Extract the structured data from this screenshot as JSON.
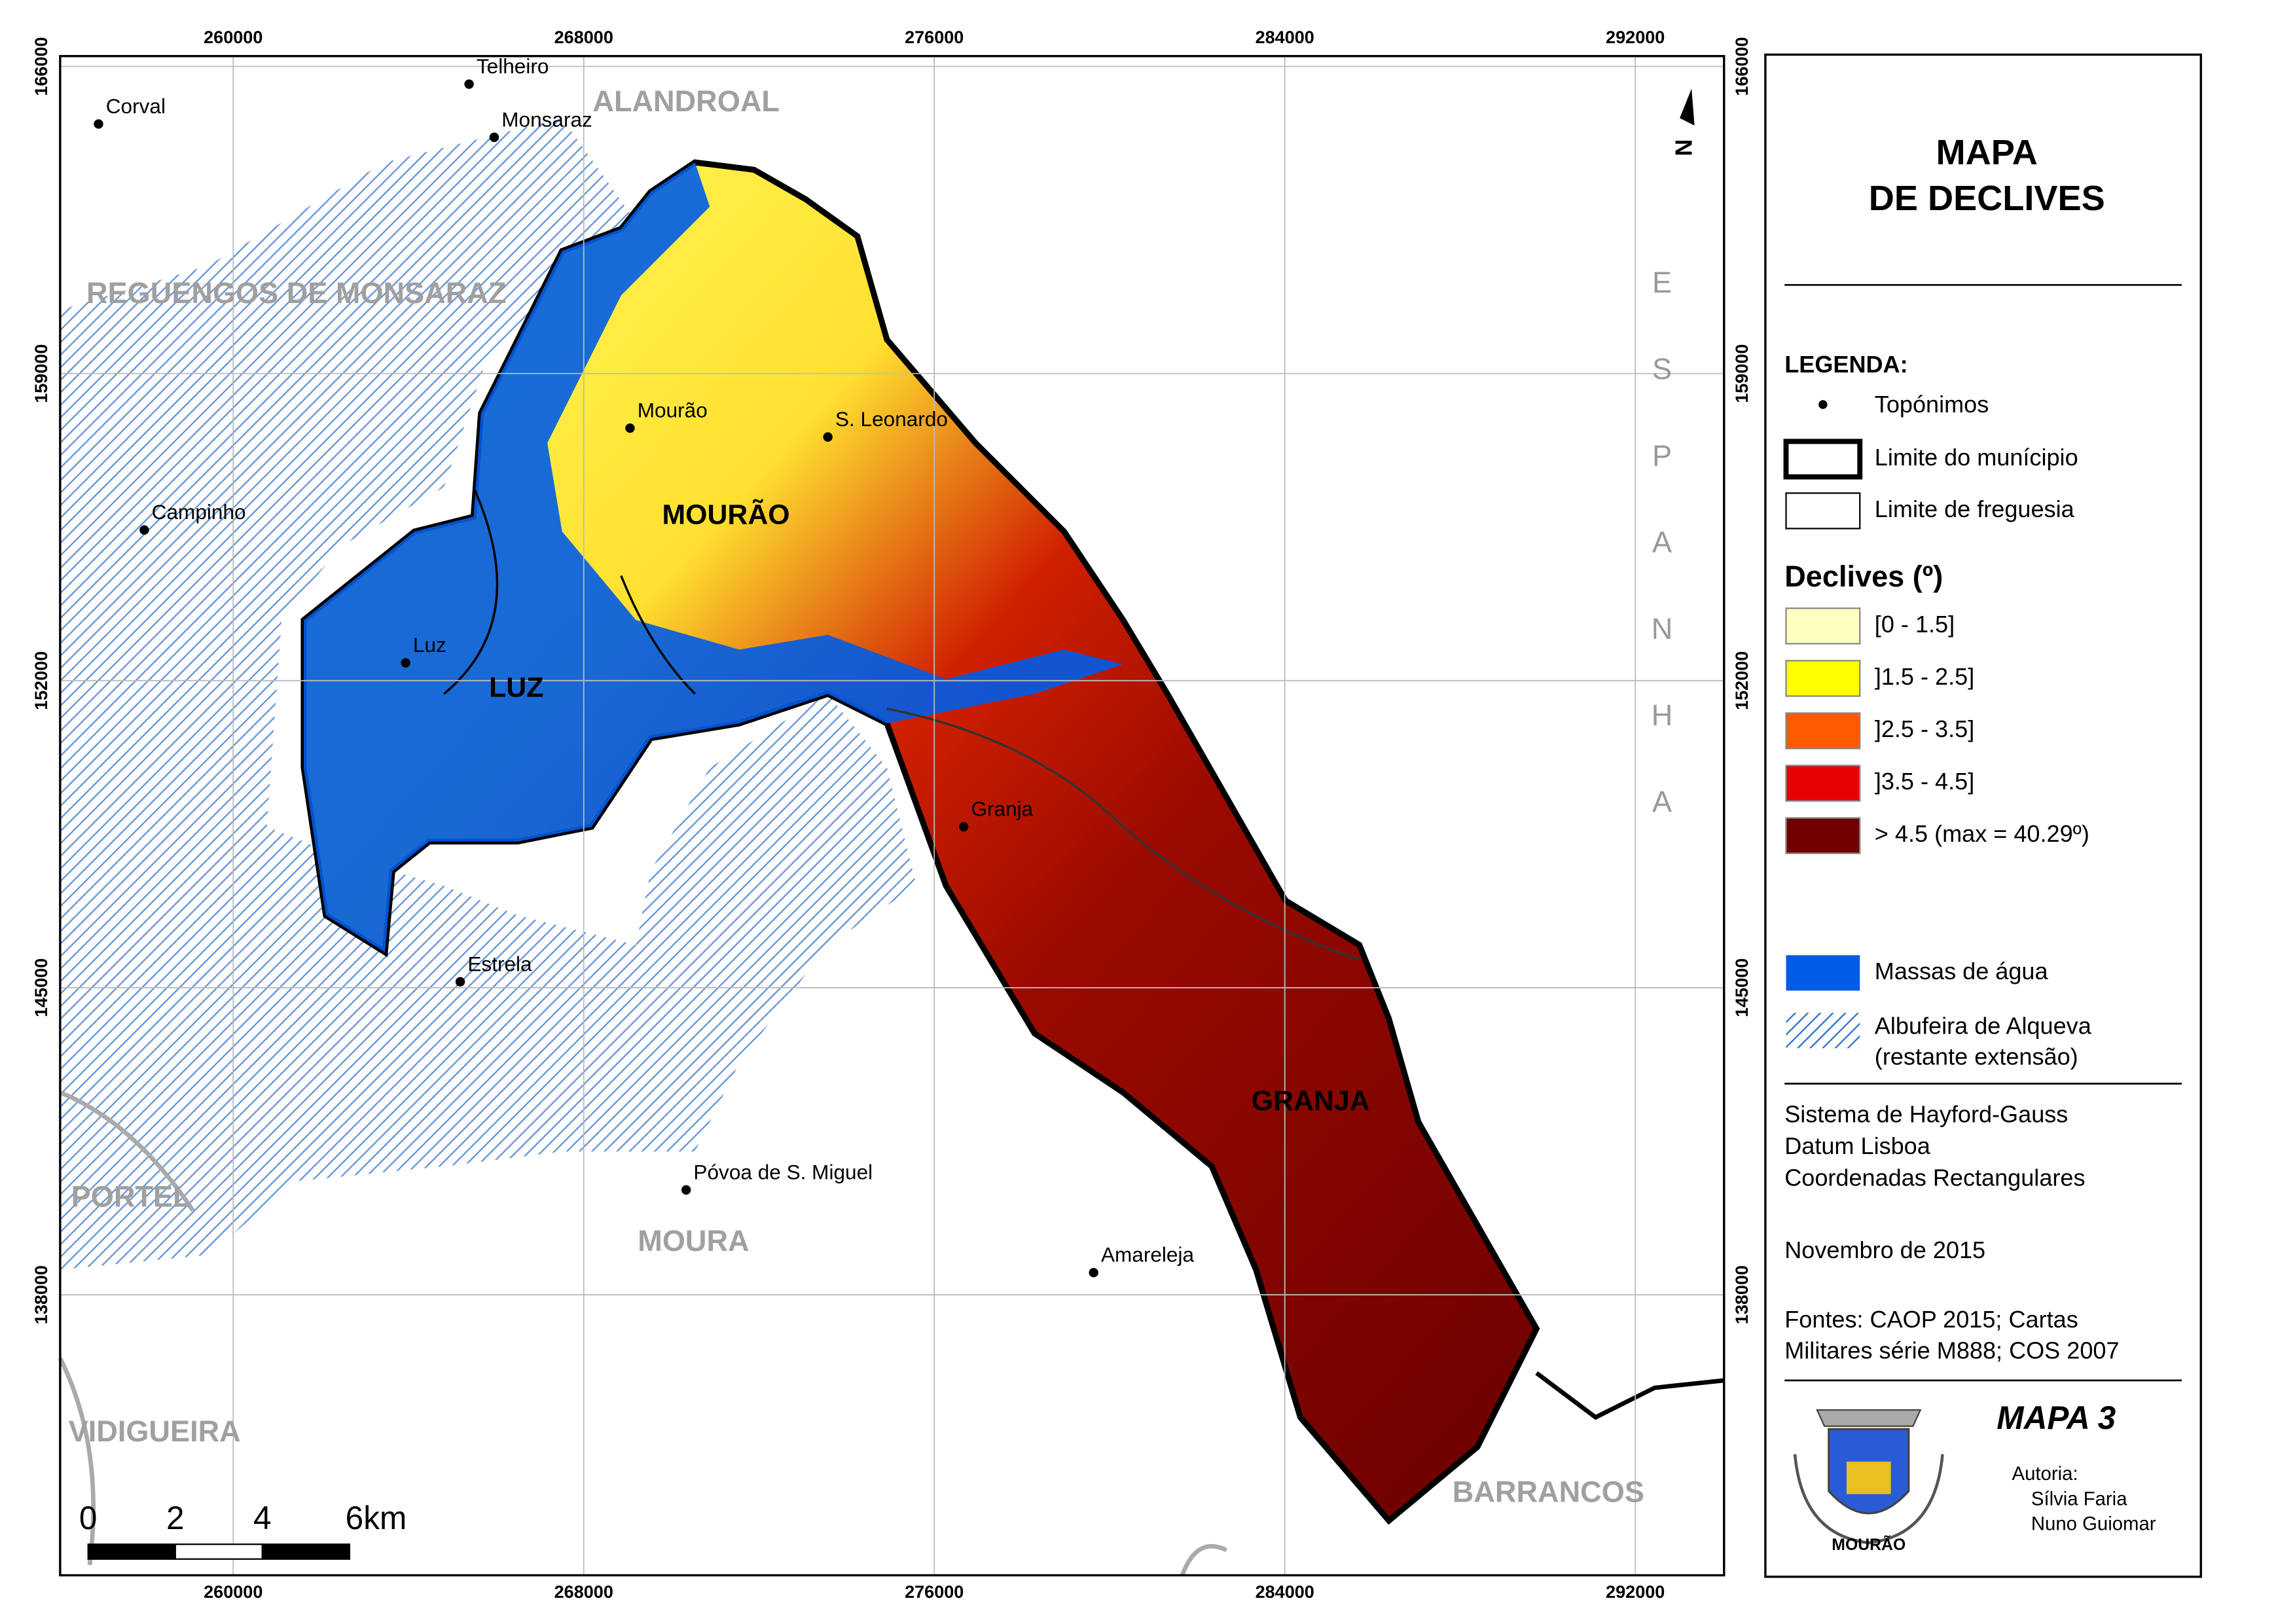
{
  "map": {
    "title": [
      "MAPA",
      "DE DECLIVES"
    ],
    "xlim": [
      256050,
      294025
    ],
    "ylim": [
      131606,
      166236
    ],
    "xticks": [
      260000,
      268000,
      276000,
      284000,
      292000
    ],
    "yticks": [
      138000,
      145000,
      152000,
      159000,
      166000
    ],
    "grid": true,
    "north": "N",
    "country": "ESPANHA",
    "places": [
      "Corval",
      "Telheiro",
      "Monsaraz",
      "Campinho",
      "Mourão",
      "S. Leonardo",
      "Luz",
      "Estrela",
      "Póvoa de S. Miguel",
      "Amareleja",
      "Granja"
    ],
    "regions": [
      "ALANDROAL",
      "REGUENGOS DE MONSARAZ",
      "PORTEL",
      "MOURA",
      "VIDIGUEIRA",
      "BARRANCOS"
    ],
    "parishes": [
      "MOURÃO",
      "LUZ",
      "GRANJA"
    ],
    "scale_bar": [
      0,
      2,
      4,
      "6km"
    ],
    "legend": {
      "title": "LEGENDA:",
      "places": "Topónimos",
      "municipality": "Limite do munícipio",
      "parish": "Limite de freguesia",
      "slope_title": "Declives (º)",
      "slope_classes": [
        {
          "label": "[0 - 1.5]",
          "color": "#ffffc0"
        },
        {
          "label": "]1.5 - 2.5]",
          "color": "#ffff00"
        },
        {
          "label": "]2.5 - 3.5]",
          "color": "#ff5a00"
        },
        {
          "label": "]3.5 - 4.5]",
          "color": "#e60000"
        },
        {
          "label": "> 4.5 (max = 40.29º)",
          "color": "#730000"
        }
      ],
      "water": {
        "label": "Massas de água",
        "color": "#005ce6"
      },
      "reservoir": [
        "Albufeira de Alqueva",
        "(restante extensão)"
      ]
    },
    "info": [
      "Sistema de Hayford-Gauss",
      "Datum Lisboa",
      "Coordenadas Rectangulares"
    ],
    "date": "Novembro de 2015",
    "sources": [
      "Fontes: CAOP 2015; Cartas",
      "Militares série M888; COS 2007"
    ],
    "map_number": "MAPA 3",
    "authorship": [
      "Autoria:",
      "Sílvia Faria",
      "Nuno Guiomar"
    ],
    "emblem_label": "MOURÃO"
  }
}
